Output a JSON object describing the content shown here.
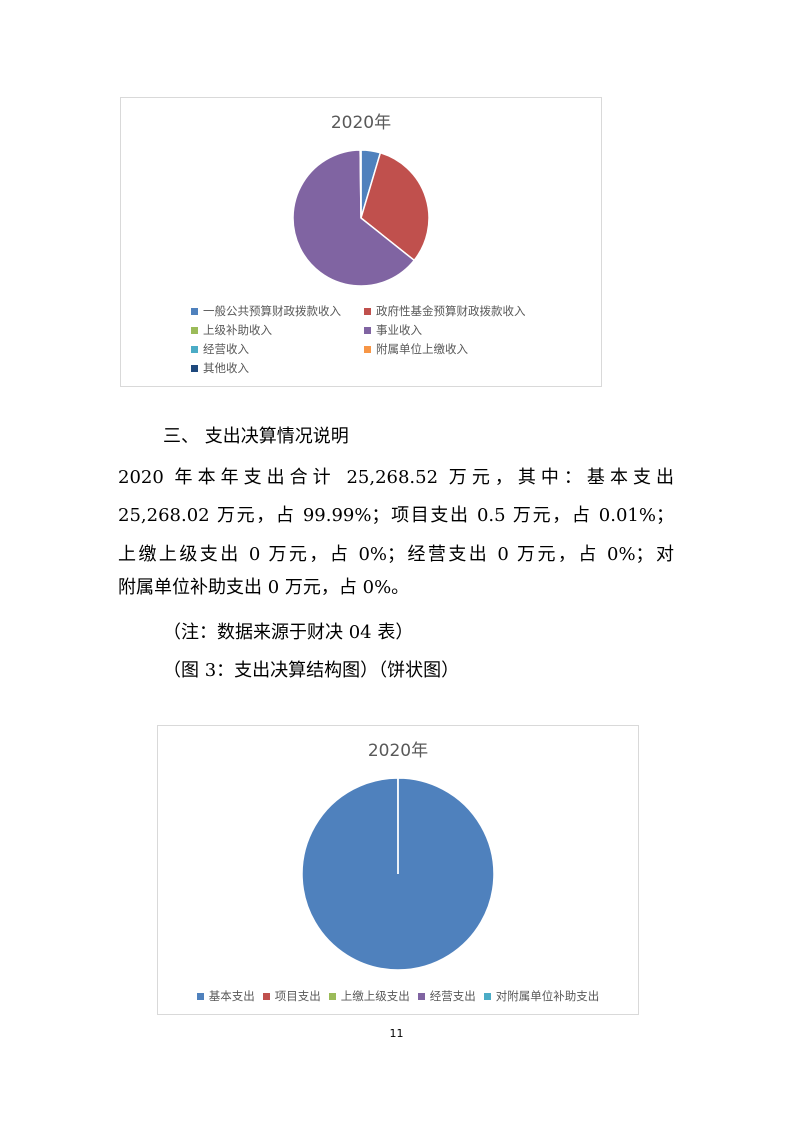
{
  "chart_data": [
    {
      "type": "pie",
      "title": "2020年",
      "categories": [
        "一般公共预算财政拨款收入",
        "政府性基金预算财政拨款收入",
        "上级补助收入",
        "事业收入",
        "经营收入",
        "附属单位上缴收入",
        "其他收入"
      ],
      "values": [
        4.6,
        31.1,
        0,
        64.1,
        0,
        0,
        0.2
      ],
      "colors": [
        "#4f81bd",
        "#c0504d",
        "#9bbb59",
        "#8064a2",
        "#4bacc6",
        "#f79646",
        "#1f497d"
      ],
      "legend": "bottom"
    },
    {
      "type": "pie",
      "title": "2020年",
      "categories": [
        "基本支出",
        "项目支出",
        "上缴上级支出",
        "经营支出",
        "对附属单位补助支出"
      ],
      "values": [
        99.99,
        0.01,
        0,
        0,
        0
      ],
      "colors": [
        "#4f81bd",
        "#c0504d",
        "#9bbb59",
        "#8064a2",
        "#4bacc6"
      ],
      "legend": "bottom"
    }
  ],
  "section_heading": "三、 支出决算情况说明",
  "paragraph_lines": [
    "2020 年本年支出合计 25,268.52 万元，其中：基本支出",
    "25,268.02 万元，占 99.99%；项目支出 0.5 万元，占 0.01%；",
    "上缴上级支出 0 万元，占 0%；经营支出 0 万元，占 0%；对",
    "附属单位补助支出 0 万元，占 0%。"
  ],
  "note": "（注：数据来源于财决 04 表）",
  "figure_caption": "（图 3：支出决算结构图）（饼状图）",
  "page_number": "11"
}
